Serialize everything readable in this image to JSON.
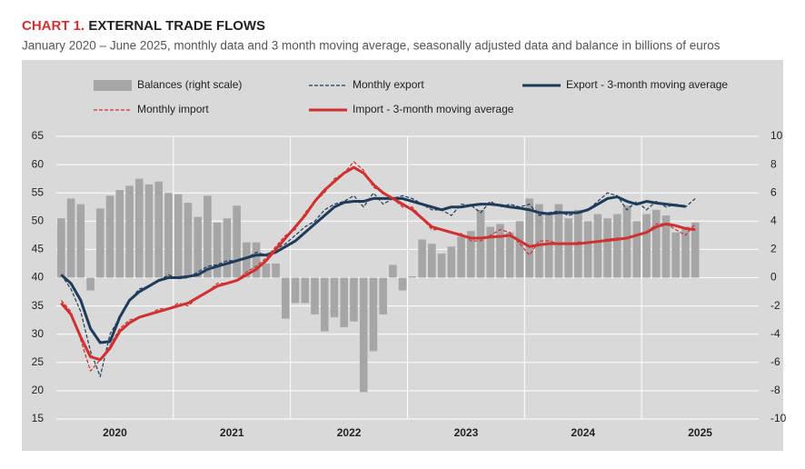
{
  "chart_data": {
    "type": "bar-line",
    "title_prefix": "CHART 1.",
    "title": "EXTERNAL TRADE FLOWS",
    "subtitle": "January 2020 – June 2025, monthly data and 3 month moving average, seasonally adjusted data and balance in billions of euros",
    "categories": [
      null,
      null,
      null,
      null,
      null,
      null,
      null,
      null,
      null,
      null,
      null,
      null,
      null,
      null,
      null,
      null,
      null,
      null,
      null,
      null,
      null,
      null,
      null,
      null,
      null,
      null,
      null,
      null,
      null,
      null,
      null,
      null,
      null,
      null,
      null,
      null,
      null,
      null,
      null,
      null,
      null,
      null,
      null,
      null,
      null,
      null,
      null,
      null,
      null,
      null,
      null,
      null,
      null,
      null,
      null,
      null,
      null,
      null,
      null,
      null,
      null,
      null,
      null,
      null,
      null,
      null
    ],
    "xlim": [
      -0.5,
      71.5
    ],
    "xticks": [
      {
        "value": 5.5,
        "label": "2020"
      },
      {
        "value": 17.5,
        "label": "2021"
      },
      {
        "value": 29.5,
        "label": "2022"
      },
      {
        "value": 41.5,
        "label": "2023"
      },
      {
        "value": 53.5,
        "label": "2024"
      },
      {
        "value": 65.5,
        "label": "2025"
      }
    ],
    "xgrid": [
      11.5,
      23.5,
      35.5,
      47.5,
      59.5
    ],
    "ylim": [
      15,
      65
    ],
    "yticks": [
      15,
      20,
      25,
      30,
      35,
      40,
      45,
      50,
      55,
      60,
      65
    ],
    "y2lim": [
      -10,
      10
    ],
    "y2ticks": [
      -10,
      -8,
      -6,
      -4,
      -2,
      0,
      2,
      4,
      6,
      8,
      10
    ],
    "grid": true,
    "series": [
      {
        "name": "Balances (right scale)",
        "type": "bar",
        "axis": "y2",
        "color": "#a6a6a6",
        "values": [
          4.2,
          5.6,
          5.2,
          -0.9,
          4.9,
          5.8,
          6.2,
          6.5,
          7.0,
          6.6,
          6.8,
          6.0,
          5.9,
          5.3,
          4.3,
          5.8,
          3.9,
          4.2,
          5.1,
          2.5,
          2.5,
          1.0,
          1.0,
          -2.9,
          -1.8,
          -1.8,
          -2.6,
          -3.8,
          -2.8,
          -3.5,
          -3.1,
          -8.1,
          -5.2,
          -2.6,
          0.9,
          -0.9,
          0.1,
          2.7,
          2.4,
          1.7,
          2.2,
          2.9,
          3.3,
          4.8,
          3.6,
          3.8,
          3.2,
          4.0,
          5.6,
          5.2,
          4.6,
          5.2,
          4.2,
          4.8,
          4.0,
          4.5,
          4.2,
          4.5,
          5.1,
          4.0,
          4.5,
          4.8,
          4.4,
          3.2,
          3.6,
          3.9
        ]
      },
      {
        "name": "Monthly export",
        "type": "line",
        "dash": true,
        "color": "#1f3b5a",
        "values": [
          40.5,
          38,
          34,
          27,
          22.5,
          30,
          33,
          36,
          38,
          38.5,
          39.5,
          40.5,
          39.8,
          40,
          41,
          42,
          42.3,
          43,
          43,
          43.5,
          44.5,
          44,
          45,
          46,
          47.5,
          49,
          50,
          52,
          53,
          53.5,
          54.5,
          52.5,
          55,
          53,
          54,
          54.5,
          54,
          53,
          52,
          52,
          51,
          53,
          52.8,
          51.5,
          53.5,
          52.5,
          53,
          52.5,
          53,
          51,
          51.5,
          51.8,
          51,
          51.5,
          52,
          53.5,
          55,
          54.5,
          52,
          53.5,
          52,
          53.5,
          52.5,
          53,
          52.5,
          54
        ]
      },
      {
        "name": "Export - 3-month moving average",
        "type": "line",
        "dash": false,
        "color": "#1f3b5a",
        "values": [
          40.5,
          39,
          36,
          31,
          28.5,
          28.7,
          33,
          36,
          37.5,
          38.5,
          39.5,
          40,
          40,
          40.2,
          40.5,
          41.5,
          42,
          42.5,
          43,
          43.5,
          44,
          44,
          44.5,
          45.5,
          46.5,
          48,
          49.5,
          51,
          52.5,
          53.3,
          53.5,
          53.5,
          54,
          54,
          54,
          54,
          53.5,
          53,
          52.5,
          52,
          52.5,
          52.5,
          52.8,
          53,
          53,
          52.8,
          52.5,
          52.3,
          52,
          51.5,
          51.3,
          51.5,
          51.5,
          51.5,
          52,
          53,
          54,
          54.3,
          53.5,
          53,
          53.5,
          53.2,
          53,
          52.8,
          52.6,
          null
        ]
      },
      {
        "name": "Monthly import",
        "type": "line",
        "dash": true,
        "color": "#d03030",
        "values": [
          36,
          34,
          29,
          23.5,
          25.5,
          28,
          31,
          32.5,
          33,
          33.5,
          34.5,
          34.5,
          35.5,
          35,
          36.5,
          37.5,
          39,
          39,
          39.5,
          41,
          42,
          43.5,
          45.5,
          47.5,
          48.5,
          51.5,
          53.5,
          55,
          57.5,
          58.5,
          60.5,
          59,
          56,
          55,
          54,
          52.5,
          52.5,
          50.5,
          48.5,
          48.5,
          48,
          47.8,
          46.5,
          46.5,
          47.5,
          48.5,
          48,
          46,
          44,
          46.5,
          46.5,
          46,
          46,
          46.3,
          46.2,
          46.5,
          46.8,
          47,
          47,
          47.5,
          48,
          49.5,
          49.5,
          48.5,
          47.5,
          49.5
        ]
      },
      {
        "name": "Import - 3-month moving average",
        "type": "line",
        "dash": false,
        "color": "#d03030",
        "values": [
          35.5,
          33.5,
          29.5,
          26,
          25.5,
          27.5,
          30.5,
          32,
          33,
          33.5,
          34,
          34.5,
          35,
          35.5,
          36.5,
          37.5,
          38.5,
          39,
          39.5,
          40.5,
          41.5,
          43,
          45,
          47,
          49,
          51,
          53.5,
          55.5,
          57,
          58.5,
          59.5,
          58.5,
          56.5,
          55,
          54,
          53,
          52,
          50.5,
          49,
          48.5,
          48,
          47.5,
          47,
          47,
          47.2,
          47.3,
          47.5,
          46.5,
          45.5,
          45.8,
          46,
          46,
          46,
          46,
          46.2,
          46.4,
          46.6,
          46.8,
          47,
          47.5,
          48,
          49,
          49.5,
          49.2,
          48.7,
          48.5
        ]
      }
    ]
  }
}
